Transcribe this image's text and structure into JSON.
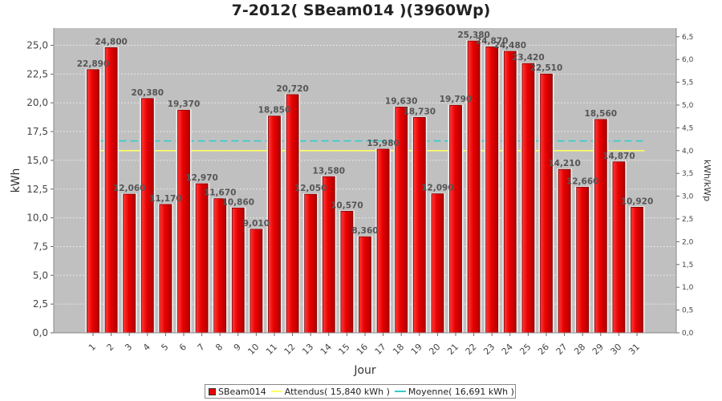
{
  "chart_data": {
    "type": "bar",
    "title": "7-2012( SBeam014 )(3960Wp)",
    "xlabel": "Jour",
    "ylabel": "kWh",
    "ylabel_right": "kWh/kWp",
    "ylim": [
      0,
      26.5
    ],
    "ylim_right": [
      0,
      6.69
    ],
    "yticks": [
      "0,0",
      "2,5",
      "5,0",
      "7,5",
      "10,0",
      "12,5",
      "15,0",
      "17,5",
      "20,0",
      "22,5",
      "25,0"
    ],
    "yticks_right": [
      "0,0",
      "0,5",
      "1,0",
      "1,5",
      "2,0",
      "2,5",
      "3,0",
      "3,5",
      "4,0",
      "4,5",
      "5,0",
      "5,5",
      "6,0",
      "6,5"
    ],
    "grid": true,
    "legend_position": "bottom",
    "categories": [
      "1",
      "2",
      "3",
      "4",
      "5",
      "6",
      "7",
      "8",
      "9",
      "10",
      "11",
      "12",
      "13",
      "14",
      "15",
      "16",
      "17",
      "18",
      "19",
      "20",
      "21",
      "22",
      "23",
      "24",
      "25",
      "26",
      "27",
      "28",
      "29",
      "30",
      "31"
    ],
    "series": [
      {
        "name": "SBeam014",
        "color": "#e80000",
        "values": [
          22.89,
          24.8,
          12.06,
          20.38,
          11.17,
          19.37,
          12.97,
          11.67,
          10.86,
          9.01,
          18.85,
          20.72,
          12.05,
          13.58,
          10.57,
          8.36,
          15.98,
          19.63,
          18.73,
          12.09,
          19.79,
          25.38,
          24.87,
          24.48,
          23.42,
          22.51,
          14.21,
          12.66,
          18.56,
          14.87,
          10.92
        ],
        "labels": [
          "22,890",
          "24,800",
          "12,060",
          "20,380",
          "11,170",
          "19,370",
          "12,970",
          "11,670",
          "10,860",
          "9,010",
          "18,850",
          "20,720",
          "12,050",
          "13,580",
          "10,570",
          "8,360",
          "15,980",
          "19,630",
          "18,730",
          "12,090",
          "19,790",
          "25,380",
          "24,870",
          "24,480",
          "23,420",
          "22,510",
          "14,210",
          "12,660",
          "18,560",
          "14,870",
          "10,920"
        ]
      }
    ],
    "reference_lines": [
      {
        "name": "Attendus( 15,840 kWh )",
        "value": 15.84,
        "color": "#ffff66"
      },
      {
        "name": "Moyenne( 16,691 kWh )",
        "value": 16.691,
        "color": "#33cccc"
      }
    ]
  }
}
